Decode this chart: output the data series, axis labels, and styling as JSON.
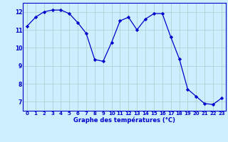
{
  "hours": [
    0,
    1,
    2,
    3,
    4,
    5,
    6,
    7,
    8,
    9,
    10,
    11,
    12,
    13,
    14,
    15,
    16,
    17,
    18,
    19,
    20,
    21,
    22,
    23
  ],
  "temps": [
    11.2,
    11.7,
    12.0,
    12.1,
    12.1,
    11.9,
    11.4,
    10.8,
    9.35,
    9.25,
    10.3,
    11.5,
    11.7,
    11.0,
    11.6,
    11.9,
    11.9,
    10.6,
    9.4,
    7.7,
    7.3,
    6.9,
    6.85,
    7.2
  ],
  "line_color": "#0000cc",
  "marker": "D",
  "marker_size": 2.2,
  "bg_color": "#cceeff",
  "grid_color": "#aacccc",
  "xlabel": "Graphe des températures (°C)",
  "xlabel_color": "#0000cc",
  "tick_color": "#0000cc",
  "ylim": [
    6.5,
    12.5
  ],
  "yticks": [
    7,
    8,
    9,
    10,
    11,
    12
  ],
  "xticks": [
    0,
    1,
    2,
    3,
    4,
    5,
    6,
    7,
    8,
    9,
    10,
    11,
    12,
    13,
    14,
    15,
    16,
    17,
    18,
    19,
    20,
    21,
    22,
    23
  ]
}
